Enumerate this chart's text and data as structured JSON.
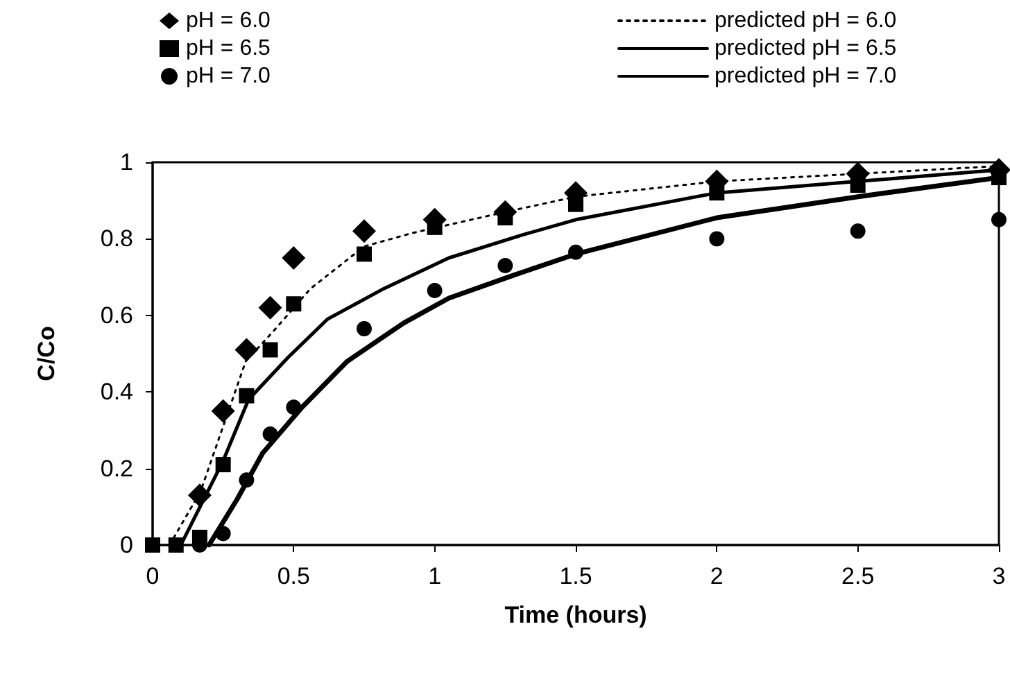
{
  "chart_data": {
    "type": "scatter",
    "xlabel": "Time (hours)",
    "ylabel": "C/Co",
    "xlim": [
      0,
      3
    ],
    "xticks": [
      0,
      0.5,
      1,
      1.5,
      2,
      2.5,
      3
    ],
    "ylim": [
      0,
      1
    ],
    "yticks": [
      0,
      0.2,
      0.4,
      0.6,
      0.8,
      1
    ],
    "grid": false,
    "legend": "top",
    "series": [
      {
        "name": "pH = 6.0",
        "marker": "diamond",
        "color": "#000000",
        "x": [
          0.167,
          0.25,
          0.333,
          0.417,
          0.5,
          0.75,
          1,
          1.25,
          1.5,
          2,
          2.5,
          3
        ],
        "values": [
          0.13,
          0.35,
          0.51,
          0.62,
          0.75,
          0.82,
          0.85,
          0.87,
          0.92,
          0.95,
          0.97,
          0.98
        ]
      },
      {
        "name": "pH = 6.5",
        "marker": "square",
        "color": "#000000",
        "x": [
          0,
          0.083,
          0.167,
          0.25,
          0.333,
          0.417,
          0.5,
          0.75,
          1,
          1.25,
          1.5,
          2,
          2.5,
          3
        ],
        "values": [
          0,
          0,
          0.02,
          0.21,
          0.39,
          0.51,
          0.63,
          0.76,
          0.83,
          0.855,
          0.89,
          0.92,
          0.94,
          0.96
        ]
      },
      {
        "name": "pH = 7.0",
        "marker": "circle",
        "color": "#000000",
        "x": [
          0.167,
          0.25,
          0.333,
          0.417,
          0.5,
          0.75,
          1,
          1.25,
          1.5,
          2,
          2.5,
          3
        ],
        "values": [
          0,
          0.03,
          0.17,
          0.29,
          0.36,
          0.565,
          0.665,
          0.73,
          0.765,
          0.8,
          0.82,
          0.85
        ]
      },
      {
        "name": "predicted pH = 6.0",
        "type": "line",
        "marker": "none",
        "line_style": "dotted",
        "color": "#000000",
        "x": [
          0.06,
          0.17,
          0.33,
          0.43,
          0.56,
          0.75,
          0.92,
          1.25,
          1.5,
          2,
          2.5,
          3
        ],
        "values": [
          0,
          0.14,
          0.48,
          0.56,
          0.67,
          0.78,
          0.815,
          0.87,
          0.91,
          0.95,
          0.97,
          0.99
        ]
      },
      {
        "name": "predicted pH = 6.5",
        "type": "line",
        "marker": "none",
        "line_style": "solid",
        "color": "#000000",
        "x": [
          0.1,
          0.25,
          0.34,
          0.48,
          0.62,
          0.82,
          1.05,
          1.31,
          1.5,
          2,
          2.5,
          3
        ],
        "values": [
          0,
          0.22,
          0.38,
          0.49,
          0.59,
          0.67,
          0.75,
          0.81,
          0.85,
          0.92,
          0.95,
          0.98
        ]
      },
      {
        "name": "predicted pH = 7.0",
        "type": "line",
        "marker": "none",
        "line_style": "solid",
        "color": "#000000",
        "x": [
          0.2,
          0.3,
          0.39,
          0.53,
          0.69,
          0.89,
          1.05,
          1.28,
          1.5,
          2,
          2.5,
          3
        ],
        "values": [
          0,
          0.12,
          0.24,
          0.36,
          0.48,
          0.58,
          0.645,
          0.705,
          0.76,
          0.855,
          0.91,
          0.96
        ]
      }
    ]
  }
}
